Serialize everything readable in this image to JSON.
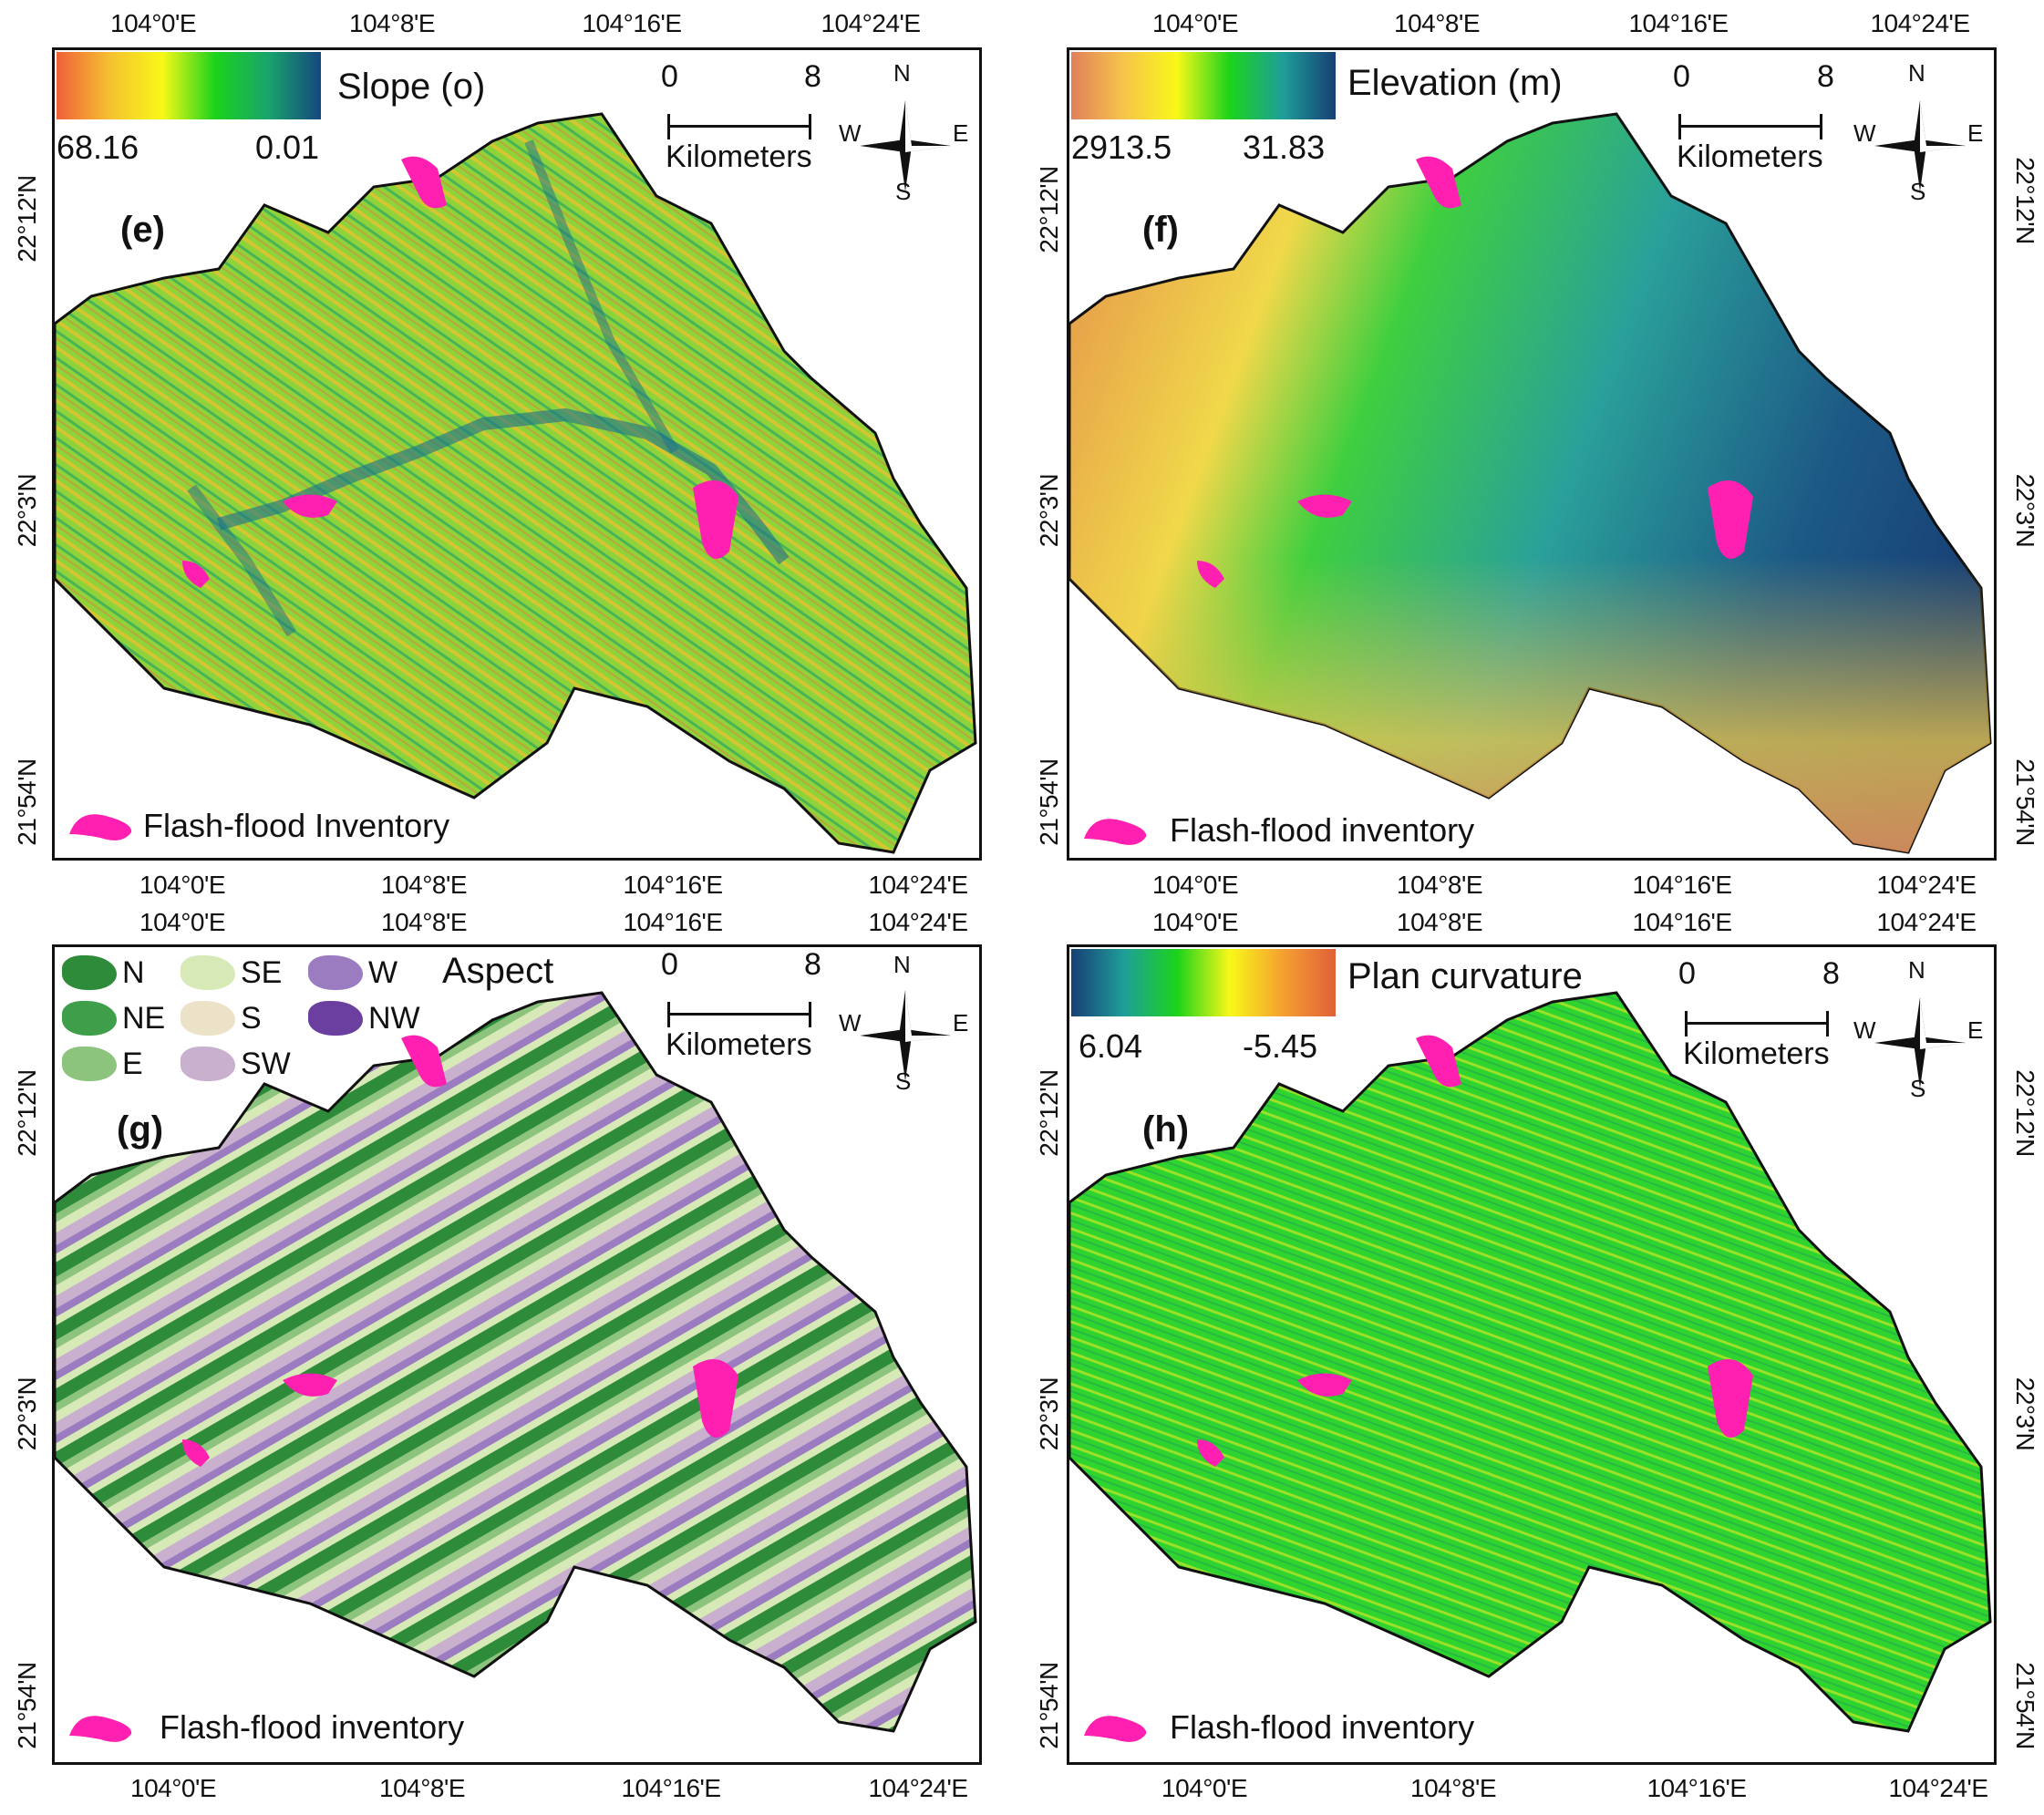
{
  "axis": {
    "lon_ticks": [
      "104°0'E",
      "104°8'E",
      "104°16'E",
      "104°24'E"
    ],
    "lat_ticks": [
      "22°12'N",
      "22°3'N",
      "21°54'N"
    ]
  },
  "scalebar": {
    "start": "0",
    "end": "8",
    "unit": "Kilometers"
  },
  "compass": {
    "n": "N",
    "s": "S",
    "e": "E",
    "w": "W"
  },
  "colors": {
    "inventory": "#ff1fb0",
    "frame": "#111111",
    "aspect_N": "#2e8b3a",
    "aspect_NE": "#3f9e4a",
    "aspect_E": "#8cc47d",
    "aspect_SE": "#d8e9b8",
    "aspect_S": "#ebe2c8",
    "aspect_SW": "#c9b0cf",
    "aspect_W": "#9b7cc0",
    "aspect_NW": "#6b3fa0"
  },
  "panels": [
    {
      "id": "e",
      "label": "(e)",
      "legend_title": "Slope (o)",
      "legend_min": "68.16",
      "legend_max": "0.01",
      "inventory_label": "Flash-flood Inventory",
      "ramp": [
        "#f0603a",
        "#f5c030",
        "#f8f818",
        "#1bd31b",
        "#19a46c",
        "#15477e"
      ],
      "fill_main": "#8fd33a"
    },
    {
      "id": "f",
      "label": "(f)",
      "legend_title": "Elevation (m)",
      "legend_min": "2913.5",
      "legend_max": "31.83",
      "inventory_label": "Flash-flood inventory",
      "ramp": [
        "#e0805a",
        "#f7c54a",
        "#f8f818",
        "#1bd31b",
        "#1e9e9a",
        "#173f74"
      ],
      "fill_main": "#3aa98e"
    },
    {
      "id": "g",
      "label": "(g)",
      "legend_title": "Aspect",
      "aspect_classes": [
        "N",
        "NE",
        "E",
        "SE",
        "S",
        "SW",
        "W",
        "NW"
      ],
      "inventory_label": "Flash-flood inventory"
    },
    {
      "id": "h",
      "label": "(h)",
      "legend_title": "Plan curvature",
      "legend_min": "6.04",
      "legend_max": "-5.45",
      "inventory_label": "Flash-flood inventory",
      "ramp": [
        "#173f74",
        "#1e9e9a",
        "#1bd31b",
        "#f8f818",
        "#f5a030",
        "#e0603a"
      ],
      "fill_main": "#2fd42f"
    }
  ]
}
